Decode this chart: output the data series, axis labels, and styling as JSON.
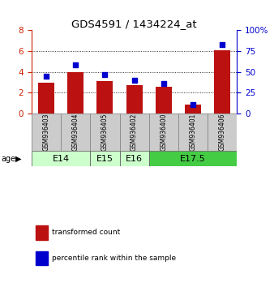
{
  "title": "GDS4591 / 1434224_at",
  "samples": [
    "GSM936403",
    "GSM936404",
    "GSM936405",
    "GSM936402",
    "GSM936400",
    "GSM936401",
    "GSM936406"
  ],
  "transformed_counts": [
    3.0,
    4.0,
    3.1,
    2.75,
    2.55,
    0.85,
    6.1
  ],
  "percentile_ranks": [
    45,
    58,
    47,
    40,
    36,
    11,
    83
  ],
  "bar_color": "#bb1111",
  "dot_color": "#0000cc",
  "left_ylim": [
    0,
    8
  ],
  "right_ylim": [
    0,
    100
  ],
  "left_yticks": [
    0,
    2,
    4,
    6,
    8
  ],
  "right_yticks": [
    0,
    25,
    50,
    75,
    100
  ],
  "right_yticklabels": [
    "0",
    "25",
    "50",
    "75",
    "100%"
  ],
  "grid_yticks": [
    2,
    4,
    6
  ],
  "background_color": "#ffffff",
  "sample_box_color": "#cccccc",
  "left_tick_color": "#cc2200",
  "right_tick_color": "#0000cc",
  "age_groups": [
    {
      "label": "E14",
      "start": 0,
      "end": 1,
      "color": "#ccffcc"
    },
    {
      "label": "E15",
      "start": 2,
      "end": 2,
      "color": "#ccffcc"
    },
    {
      "label": "E16",
      "start": 3,
      "end": 3,
      "color": "#ccffcc"
    },
    {
      "label": "E17.5",
      "start": 4,
      "end": 6,
      "color": "#44cc44"
    }
  ],
  "legend_items": [
    {
      "label": "transformed count",
      "color": "#bb1111"
    },
    {
      "label": "percentile rank within the sample",
      "color": "#0000cc"
    }
  ]
}
